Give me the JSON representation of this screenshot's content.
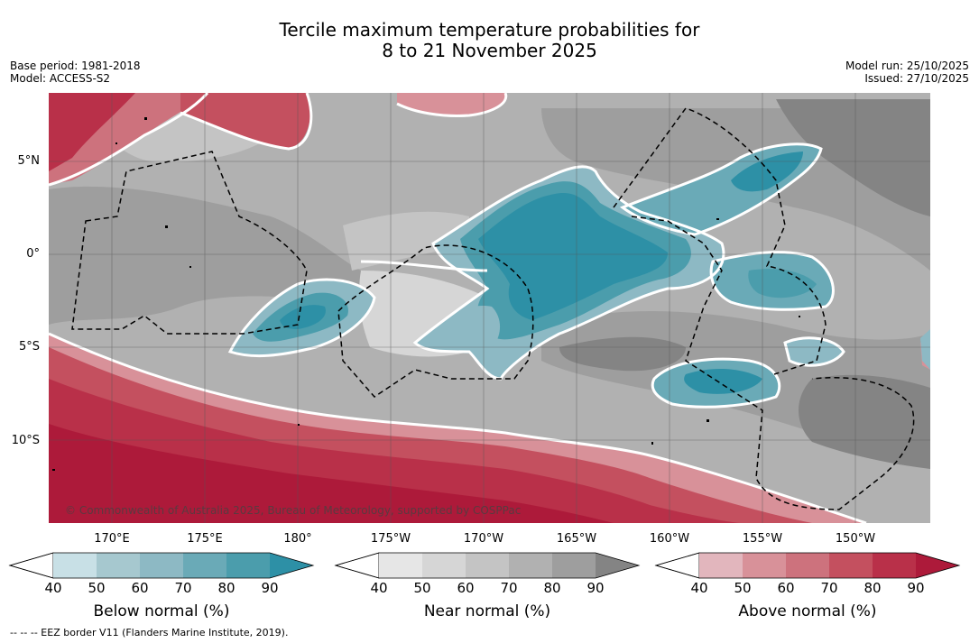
{
  "title": {
    "line1": "Tercile maximum temperature probabilities for",
    "line2": "8 to 21 November 2025"
  },
  "meta_left": {
    "base_period": "Base period: 1981-2018",
    "model": "Model: ACCESS-S2"
  },
  "meta_right": {
    "model_run": "Model run: 25/10/2025",
    "issued": "Issued: 27/10/2025"
  },
  "lat_labels": [
    "5°N",
    "0°",
    "5°S",
    "10°S"
  ],
  "lon_labels": [
    "170°E",
    "175°E",
    "180°",
    "175°W",
    "170°W",
    "165°W",
    "160°W",
    "155°W",
    "150°W"
  ],
  "copyright": "© Commonwealth of Australia 2025, Bureau of Meteorology, supported by COSPPac",
  "colorbars": [
    {
      "title": "Below normal (%)",
      "ticks": [
        "40",
        "50",
        "60",
        "70",
        "80",
        "90"
      ],
      "colors": [
        "#c8e0e6",
        "#a6c8cf",
        "#8db9c4",
        "#6aaab7",
        "#4b9dac",
        "#2d90a6"
      ]
    },
    {
      "title": "Near normal (%)",
      "ticks": [
        "40",
        "50",
        "60",
        "70",
        "80",
        "90"
      ],
      "colors": [
        "#e6e6e6",
        "#d6d6d6",
        "#c4c4c4",
        "#b1b1b1",
        "#9e9e9e",
        "#848484"
      ]
    },
    {
      "title": "Above normal (%)",
      "ticks": [
        "40",
        "50",
        "60",
        "70",
        "80",
        "90"
      ],
      "colors": [
        "#e2b6bd",
        "#d89199",
        "#cd727d",
        "#c4505f",
        "#b93049",
        "#ad1a3a"
      ]
    }
  ],
  "footnote": "--  --  -- EEZ border V11 (Flanders Marine Institute, 2019).",
  "colors": {
    "below_dark": "#2d90a6",
    "near_dark": "#848484",
    "above_dark": "#ad1a3a"
  }
}
